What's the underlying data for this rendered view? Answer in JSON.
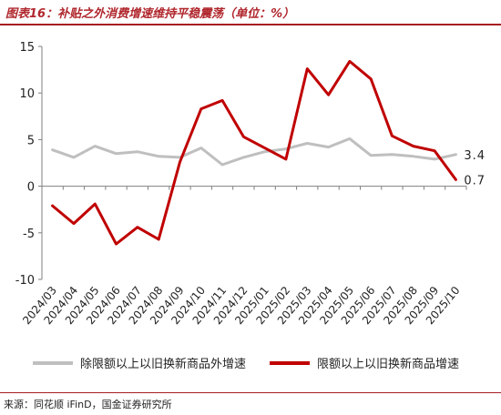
{
  "figure": {
    "title": "图表16：补贴之外消费增速维持平稳震荡（单位：%）",
    "source": "来源：同花顺 iFinD，国金证券研究所"
  },
  "chart_data": {
    "type": "line",
    "categories": [
      "2024/03",
      "2024/04",
      "2024/05",
      "2024/06",
      "2024/07",
      "2024/08",
      "2024/09",
      "2024/10",
      "2024/11",
      "2024/12",
      "2025/01",
      "2025/02",
      "2025/03",
      "2025/04",
      "2025/05",
      "2025/06",
      "2025/07",
      "2025/08",
      "2025/09",
      "2025/10"
    ],
    "ylim": [
      -10,
      15
    ],
    "yticks": [
      -10,
      -5,
      0,
      5,
      10,
      15
    ],
    "grid": false,
    "legend_position": "bottom",
    "series": [
      {
        "name": "除限额以上以旧换新商品外增速",
        "color": "#bfbfbf",
        "values": [
          3.9,
          3.1,
          4.3,
          3.5,
          3.7,
          3.2,
          3.1,
          4.1,
          2.3,
          3.1,
          3.7,
          4.0,
          4.6,
          4.2,
          5.1,
          3.3,
          3.4,
          3.2,
          2.9,
          3.4
        ],
        "end_label": "3.4"
      },
      {
        "name": "限额以上以旧换新商品增速",
        "color": "#c00000",
        "values": [
          -2.1,
          -4.0,
          -1.9,
          -6.2,
          -4.4,
          -5.7,
          2.6,
          8.3,
          9.2,
          5.3,
          4.1,
          2.9,
          12.6,
          9.8,
          13.4,
          11.5,
          5.4,
          4.3,
          3.8,
          0.7
        ],
        "end_label": "0.7"
      }
    ]
  }
}
